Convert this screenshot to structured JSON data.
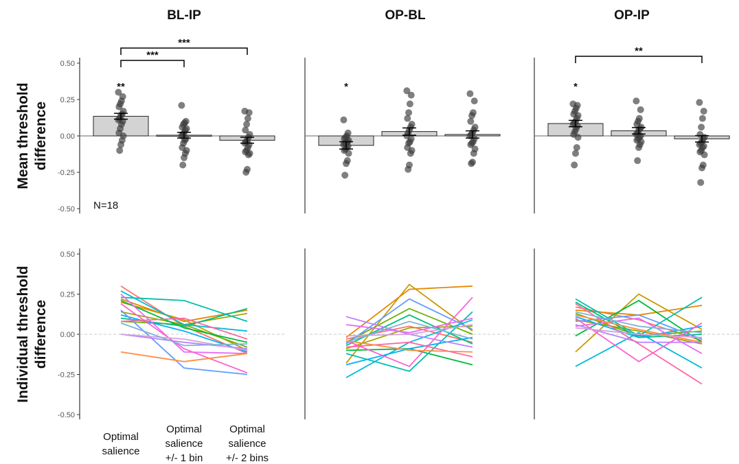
{
  "figure": {
    "panel_titles": [
      "BL-IP",
      "OP-BL",
      "OP-IP"
    ],
    "top_ylabel": [
      "Mean threshold",
      "difference"
    ],
    "bottom_ylabel": [
      "Individual threshold",
      "difference"
    ],
    "n_label": "N=18",
    "x_categories": [
      [
        "Optimal",
        "salience"
      ],
      [
        "Optimal",
        "salience",
        "+/- 1 bin"
      ],
      [
        "Optimal",
        "salience",
        "+/- 2 bins"
      ]
    ],
    "y_ticks": [
      "0.50",
      "0.25",
      "0.00",
      "-0.25",
      "-0.50"
    ]
  },
  "chart_data": [
    {
      "type": "bar",
      "title": "BL-IP",
      "ylabel": "Mean threshold difference",
      "categories": [
        "Optimal salience",
        "Optimal salience +/- 1 bin",
        "Optimal salience +/- 2 bins"
      ],
      "values": [
        0.135,
        0.005,
        -0.03
      ],
      "errors": [
        0.02,
        0.02,
        0.02
      ],
      "ylim": [
        -0.5,
        0.5
      ],
      "points": [
        [
          0.3,
          0.27,
          0.24,
          0.22,
          0.2,
          0.17,
          0.15,
          0.14,
          0.12,
          0.11,
          0.1,
          0.08,
          0.05,
          0.02,
          0.0,
          -0.03,
          -0.06,
          -0.1
        ],
        [
          0.21,
          0.1,
          0.09,
          0.08,
          0.06,
          0.05,
          0.04,
          0.02,
          0.01,
          0.0,
          -0.02,
          -0.03,
          -0.05,
          -0.08,
          -0.1,
          -0.12,
          -0.15,
          -0.2
        ],
        [
          0.17,
          0.16,
          0.12,
          0.08,
          0.04,
          0.01,
          -0.01,
          -0.03,
          -0.04,
          -0.05,
          -0.06,
          -0.08,
          -0.1,
          -0.11,
          -0.12,
          -0.13,
          -0.23,
          -0.25
        ]
      ],
      "significance": [
        {
          "type": "star",
          "category": 0,
          "label": "**"
        },
        {
          "type": "bracket",
          "from": 0,
          "to": 1,
          "label": "***"
        },
        {
          "type": "bracket",
          "from": 0,
          "to": 2,
          "label": "***"
        }
      ]
    },
    {
      "type": "bar",
      "title": "OP-BL",
      "ylabel": "Mean threshold difference",
      "categories": [
        "Optimal salience",
        "Optimal salience +/- 1 bin",
        "Optimal salience +/- 2 bins"
      ],
      "values": [
        -0.065,
        0.03,
        0.01
      ],
      "errors": [
        0.025,
        0.025,
        0.025
      ],
      "ylim": [
        -0.5,
        0.5
      ],
      "points": [
        [
          0.11,
          0.02,
          0.0,
          -0.01,
          -0.02,
          -0.03,
          -0.04,
          -0.05,
          -0.05,
          -0.06,
          -0.07,
          -0.08,
          -0.09,
          -0.1,
          -0.12,
          -0.17,
          -0.19,
          -0.27
        ],
        [
          0.31,
          0.28,
          0.22,
          0.16,
          0.12,
          0.08,
          0.06,
          0.04,
          0.02,
          0.0,
          -0.02,
          -0.04,
          -0.05,
          -0.08,
          -0.1,
          -0.12,
          -0.2,
          -0.23
        ],
        [
          0.29,
          0.24,
          0.16,
          0.14,
          0.1,
          0.06,
          0.04,
          0.02,
          0.01,
          0.0,
          -0.02,
          -0.04,
          -0.05,
          -0.06,
          -0.09,
          -0.12,
          -0.18,
          -0.19
        ]
      ],
      "significance": [
        {
          "type": "star",
          "category": 0,
          "label": "*"
        }
      ]
    },
    {
      "type": "bar",
      "title": "OP-IP",
      "ylabel": "Mean threshold difference",
      "categories": [
        "Optimal salience",
        "Optimal salience +/- 1 bin",
        "Optimal salience +/- 2 bins"
      ],
      "values": [
        0.085,
        0.035,
        -0.02
      ],
      "errors": [
        0.022,
        0.022,
        0.022
      ],
      "ylim": [
        -0.5,
        0.5
      ],
      "points": [
        [
          0.22,
          0.21,
          0.19,
          0.17,
          0.15,
          0.14,
          0.12,
          0.1,
          0.09,
          0.08,
          0.07,
          0.05,
          0.03,
          0.01,
          -0.01,
          -0.08,
          -0.12,
          -0.2
        ],
        [
          0.24,
          0.18,
          0.12,
          0.1,
          0.08,
          0.06,
          0.05,
          0.04,
          0.02,
          0.01,
          0.0,
          -0.01,
          -0.02,
          -0.03,
          -0.04,
          -0.06,
          -0.08,
          -0.17
        ],
        [
          0.23,
          0.17,
          0.12,
          0.06,
          0.01,
          -0.01,
          -0.02,
          -0.04,
          -0.05,
          -0.06,
          -0.07,
          -0.08,
          -0.1,
          -0.11,
          -0.13,
          -0.2,
          -0.22,
          -0.32
        ]
      ],
      "significance": [
        {
          "type": "star",
          "category": 0,
          "label": "*"
        },
        {
          "type": "bracket",
          "from": 0,
          "to": 2,
          "label": "**"
        }
      ]
    },
    {
      "type": "line",
      "title": "BL-IP",
      "ylabel": "Individual threshold difference",
      "ylim": [
        -0.5,
        0.5
      ],
      "series": [
        {
          "color": "#f8766d",
          "values": [
            0.3,
            0.05,
            -0.12
          ]
        },
        {
          "color": "#e58700",
          "values": [
            0.22,
            0.08,
            0.15
          ]
        },
        {
          "color": "#c99800",
          "values": [
            0.2,
            0.09,
            -0.1
          ]
        },
        {
          "color": "#a3a500",
          "values": [
            0.14,
            0.06,
            0.13
          ]
        },
        {
          "color": "#6bb100",
          "values": [
            0.08,
            0.06,
            -0.08
          ]
        },
        {
          "color": "#00ba38",
          "values": [
            0.21,
            0.04,
            -0.05
          ]
        },
        {
          "color": "#00bf7d",
          "values": [
            0.1,
            0.05,
            0.16
          ]
        },
        {
          "color": "#00c0af",
          "values": [
            0.23,
            0.21,
            0.08
          ]
        },
        {
          "color": "#00bcd8",
          "values": [
            0.27,
            0.06,
            0.02
          ]
        },
        {
          "color": "#00b0f6",
          "values": [
            0.12,
            0.02,
            -0.11
          ]
        },
        {
          "color": "#619cff",
          "values": [
            0.15,
            -0.21,
            -0.25
          ]
        },
        {
          "color": "#b983ff",
          "values": [
            0.0,
            -0.05,
            -0.09
          ]
        },
        {
          "color": "#e76bf3",
          "values": [
            0.25,
            -0.11,
            -0.12
          ]
        },
        {
          "color": "#fd61d1",
          "values": [
            0.19,
            -0.09,
            -0.24
          ]
        },
        {
          "color": "#ff67a4",
          "values": [
            0.08,
            0.1,
            -0.03
          ]
        },
        {
          "color": "#ff8c42",
          "values": [
            -0.11,
            -0.17,
            -0.12
          ]
        },
        {
          "color": "#d4a0e0",
          "values": [
            0.0,
            -0.03,
            -0.1
          ]
        },
        {
          "color": "#7fb3d5",
          "values": [
            0.07,
            -0.07,
            -0.06
          ]
        }
      ]
    },
    {
      "type": "line",
      "title": "OP-BL",
      "ylabel": "Individual threshold difference",
      "ylim": [
        -0.5,
        0.5
      ],
      "series": [
        {
          "color": "#f8766d",
          "values": [
            -0.03,
            0.05,
            -0.05
          ]
        },
        {
          "color": "#e58700",
          "values": [
            -0.02,
            0.28,
            0.3
          ]
        },
        {
          "color": "#c99800",
          "values": [
            -0.18,
            0.31,
            0.02
          ]
        },
        {
          "color": "#a3a500",
          "values": [
            -0.09,
            0.04,
            0.05
          ]
        },
        {
          "color": "#6bb100",
          "values": [
            -0.05,
            0.16,
            0.0
          ]
        },
        {
          "color": "#00ba38",
          "values": [
            -0.1,
            -0.09,
            -0.19
          ]
        },
        {
          "color": "#00bf7d",
          "values": [
            -0.07,
            0.12,
            -0.06
          ]
        },
        {
          "color": "#00c0af",
          "values": [
            -0.12,
            -0.23,
            0.14
          ]
        },
        {
          "color": "#00bcd8",
          "values": [
            -0.27,
            -0.05,
            0.09
          ]
        },
        {
          "color": "#00b0f6",
          "values": [
            -0.19,
            -0.09,
            -0.02
          ]
        },
        {
          "color": "#619cff",
          "values": [
            -0.06,
            0.22,
            0.03
          ]
        },
        {
          "color": "#b983ff",
          "values": [
            0.11,
            0.0,
            -0.08
          ]
        },
        {
          "color": "#e76bf3",
          "values": [
            0.06,
            0.01,
            0.1
          ]
        },
        {
          "color": "#fd61d1",
          "values": [
            -0.04,
            -0.2,
            0.23
          ]
        },
        {
          "color": "#ff67a4",
          "values": [
            -0.08,
            -0.05,
            -0.14
          ]
        },
        {
          "color": "#ff8c42",
          "values": [
            -0.04,
            -0.1,
            -0.11
          ]
        },
        {
          "color": "#d4a0e0",
          "values": [
            -0.01,
            0.0,
            0.06
          ]
        },
        {
          "color": "#7fb3d5",
          "values": [
            -0.05,
            0.08,
            -0.03
          ]
        }
      ]
    },
    {
      "type": "line",
      "title": "OP-IP",
      "ylabel": "Individual threshold difference",
      "ylim": [
        -0.5,
        0.5
      ],
      "series": [
        {
          "color": "#f8766d",
          "values": [
            0.17,
            0.09,
            -0.04
          ]
        },
        {
          "color": "#e58700",
          "values": [
            0.15,
            0.12,
            0.18
          ]
        },
        {
          "color": "#c99800",
          "values": [
            -0.11,
            0.25,
            0.03
          ]
        },
        {
          "color": "#a3a500",
          "values": [
            0.09,
            0.02,
            -0.06
          ]
        },
        {
          "color": "#6bb100",
          "values": [
            0.13,
            -0.01,
            0.02
          ]
        },
        {
          "color": "#00ba38",
          "values": [
            -0.01,
            0.21,
            -0.05
          ]
        },
        {
          "color": "#00bf7d",
          "values": [
            0.2,
            -0.02,
            0.0
          ]
        },
        {
          "color": "#00c0af",
          "values": [
            0.22,
            -0.01,
            0.23
          ]
        },
        {
          "color": "#00bcd8",
          "values": [
            -0.2,
            0.01,
            -0.21
          ]
        },
        {
          "color": "#00b0f6",
          "values": [
            0.11,
            -0.02,
            0.05
          ]
        },
        {
          "color": "#619cff",
          "values": [
            0.08,
            0.12,
            -0.03
          ]
        },
        {
          "color": "#b983ff",
          "values": [
            0.06,
            -0.05,
            -0.05
          ]
        },
        {
          "color": "#e76bf3",
          "values": [
            0.05,
            0.1,
            -0.12
          ]
        },
        {
          "color": "#fd61d1",
          "values": [
            0.1,
            -0.17,
            0.07
          ]
        },
        {
          "color": "#ff67a4",
          "values": [
            0.19,
            -0.06,
            -0.31
          ]
        },
        {
          "color": "#ff8c42",
          "values": [
            0.12,
            0.03,
            -0.05
          ]
        },
        {
          "color": "#d4a0e0",
          "values": [
            0.04,
            0.0,
            -0.02
          ]
        },
        {
          "color": "#7fb3d5",
          "values": [
            0.14,
            0.05,
            0.01
          ]
        }
      ]
    }
  ]
}
